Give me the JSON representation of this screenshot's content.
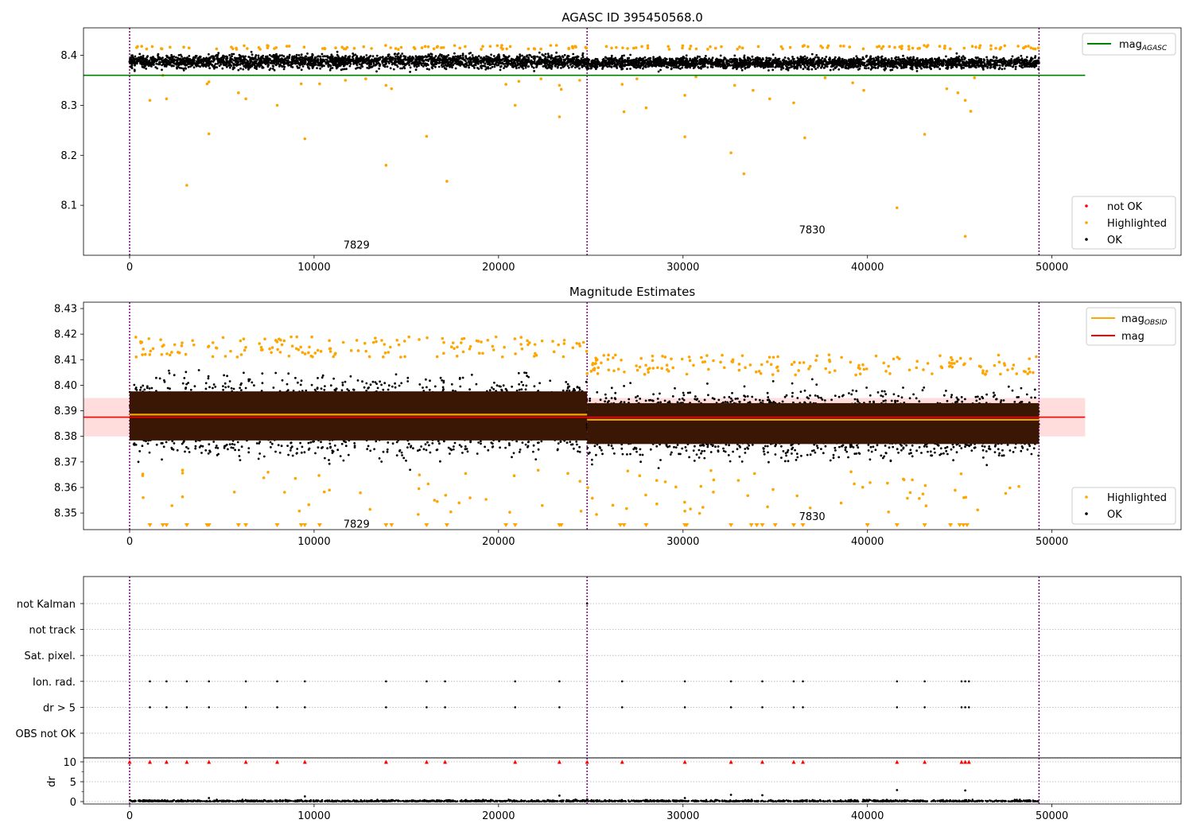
{
  "figure_title": "AGASC ID 395450568.0",
  "chart_data": [
    {
      "type": "scatter",
      "title": "",
      "xlim": [
        -2500,
        57000
      ],
      "ylim": [
        8.0,
        8.455
      ],
      "xticks": [
        0,
        10000,
        20000,
        30000,
        40000,
        50000
      ],
      "xtick_labels": [
        "0",
        "10000",
        "20000",
        "30000",
        "40000",
        "50000"
      ],
      "yticks": [
        8.1,
        8.2,
        8.3,
        8.4
      ],
      "ytick_labels": [
        "8.1",
        "8.2",
        "8.3",
        "8.4"
      ],
      "obs_boundaries": [
        0,
        24800,
        49300
      ],
      "obs_labels": [
        {
          "text": "7829",
          "x": 12300,
          "y": 8.02
        },
        {
          "text": "7830",
          "x": 37000,
          "y": 8.05
        }
      ],
      "mag_agasc": {
        "value": 8.36,
        "x_range": [
          -2500,
          51800
        ]
      },
      "ok_bands": [
        {
          "x": [
            0,
            24800
          ],
          "center": 8.388,
          "halfwidth": 0.012
        },
        {
          "x": [
            24800,
            49300
          ],
          "center": 8.385,
          "halfwidth": 0.01
        }
      ],
      "highlighted_points": [
        [
          1100,
          8.31
        ],
        [
          1800,
          8.36
        ],
        [
          2000,
          8.313
        ],
        [
          3100,
          8.14
        ],
        [
          4200,
          8.343
        ],
        [
          4300,
          8.347
        ],
        [
          4300,
          8.243
        ],
        [
          5900,
          8.325
        ],
        [
          6300,
          8.313
        ],
        [
          8000,
          8.3
        ],
        [
          9300,
          8.343
        ],
        [
          9500,
          8.233
        ],
        [
          10300,
          8.343
        ],
        [
          11700,
          8.35
        ],
        [
          12800,
          8.353
        ],
        [
          13900,
          8.34
        ],
        [
          14200,
          8.333
        ],
        [
          13900,
          8.18
        ],
        [
          16100,
          8.238
        ],
        [
          17200,
          8.148
        ],
        [
          20400,
          8.342
        ],
        [
          21100,
          8.348
        ],
        [
          20900,
          8.3
        ],
        [
          22300,
          8.353
        ],
        [
          23300,
          8.34
        ],
        [
          23300,
          8.277
        ],
        [
          23400,
          8.332
        ],
        [
          24400,
          8.35
        ],
        [
          26700,
          8.342
        ],
        [
          26800,
          8.287
        ],
        [
          27500,
          8.353
        ],
        [
          28000,
          8.295
        ],
        [
          30100,
          8.32
        ],
        [
          30100,
          8.237
        ],
        [
          30700,
          8.357
        ],
        [
          32600,
          8.205
        ],
        [
          32800,
          8.34
        ],
        [
          33300,
          8.163
        ],
        [
          33800,
          8.33
        ],
        [
          34700,
          8.313
        ],
        [
          36000,
          8.305
        ],
        [
          36600,
          8.235
        ],
        [
          37700,
          8.355
        ],
        [
          39200,
          8.345
        ],
        [
          39800,
          8.33
        ],
        [
          41600,
          8.095
        ],
        [
          43100,
          8.242
        ],
        [
          44300,
          8.333
        ],
        [
          44900,
          8.325
        ],
        [
          45300,
          8.31
        ],
        [
          45300,
          8.038
        ],
        [
          45600,
          8.288
        ],
        [
          45800,
          8.355
        ]
      ],
      "legend_lines": [
        {
          "label": "mag",
          "sub": "AGASC",
          "color": "#008000"
        }
      ],
      "legend_points": [
        {
          "label": "not OK",
          "color": "#ff0000"
        },
        {
          "label": "Highlighted",
          "color": "#ffa500"
        },
        {
          "label": "OK",
          "color": "#000000"
        }
      ]
    },
    {
      "type": "scatter",
      "title": "Magnitude Estimates",
      "xlim": [
        -2500,
        57000
      ],
      "ylim": [
        8.3435,
        8.4325
      ],
      "xticks": [
        0,
        10000,
        20000,
        30000,
        40000,
        50000
      ],
      "xtick_labels": [
        "0",
        "10000",
        "20000",
        "30000",
        "40000",
        "50000"
      ],
      "yticks": [
        8.35,
        8.36,
        8.37,
        8.38,
        8.39,
        8.4,
        8.41,
        8.42,
        8.43
      ],
      "ytick_labels": [
        "8.35",
        "8.36",
        "8.37",
        "8.38",
        "8.39",
        "8.40",
        "8.41",
        "8.42",
        "8.43"
      ],
      "obs_boundaries": [
        0,
        24800,
        49300
      ],
      "obs_labels": [
        {
          "text": "7829",
          "x": 12300,
          "y": 8.3455
        },
        {
          "text": "7830",
          "x": 37000,
          "y": 8.3485
        }
      ],
      "mag_mean": 8.3875,
      "mag_band": [
        8.38,
        8.395
      ],
      "mag_obsid": [
        {
          "x": [
            0,
            24800
          ],
          "value": 8.3885
        },
        {
          "x": [
            24800,
            49300
          ],
          "value": 8.3865
        }
      ],
      "ok_bands": [
        {
          "x": [
            0,
            24800
          ],
          "center": 8.388,
          "halfwidth": 0.012
        },
        {
          "x": [
            24800,
            49300
          ],
          "center": 8.385,
          "halfwidth": 0.01
        }
      ],
      "outlier_x": [
        1100,
        1800,
        2000,
        3100,
        4200,
        4300,
        5900,
        6300,
        8000,
        9300,
        9500,
        10300,
        13900,
        14200,
        16100,
        17200,
        20400,
        20900,
        23300,
        23400,
        26600,
        26800,
        28000,
        30100,
        30200,
        32600,
        33700,
        34000,
        34300,
        35000,
        36000,
        36500,
        40000,
        41600,
        43100,
        44500,
        45000,
        45200,
        45400
      ],
      "legend_lines": [
        {
          "label": "mag",
          "sub": "OBSID",
          "color": "#ffa500"
        },
        {
          "label": "mag",
          "sub": "",
          "color": "#ff0000"
        }
      ],
      "legend_points": [
        {
          "label": "Highlighted",
          "color": "#ffa500"
        },
        {
          "label": "OK",
          "color": "#000000"
        }
      ]
    },
    {
      "type": "scatter",
      "title": "",
      "xlim": [
        -2500,
        57000
      ],
      "xticks": [
        0,
        10000,
        20000,
        30000,
        40000,
        50000
      ],
      "xtick_labels": [
        "0",
        "10000",
        "20000",
        "30000",
        "40000",
        "50000"
      ],
      "obs_boundaries": [
        0,
        24800,
        49300
      ],
      "flag_categories": [
        "not Kalman",
        "not track",
        "Sat. pixel.",
        "Ion. rad.",
        "dr > 5",
        "OBS not OK"
      ],
      "flag_points": {
        "not Kalman": [
          24800
        ],
        "not track": [],
        "Sat. pixel.": [],
        "Ion. rad.": [
          1100,
          2000,
          3100,
          4300,
          6300,
          8000,
          9500,
          13900,
          16100,
          17100,
          20900,
          23300,
          26700,
          30100,
          32600,
          34300,
          36000,
          36500,
          41600,
          43100,
          45100,
          45300,
          45500
        ],
        "dr > 5": [
          1100,
          2000,
          3100,
          4300,
          6300,
          8000,
          9500,
          13900,
          16100,
          17100,
          20900,
          23300,
          26700,
          30100,
          32600,
          34300,
          36000,
          36500,
          41600,
          43100,
          45100,
          45300,
          45500
        ],
        "OBS not OK": []
      },
      "dr_ylim": [
        -0.6,
        10.6
      ],
      "dr_yticks": [
        0,
        5,
        10
      ],
      "dr_ytick_labels": [
        "0",
        "5",
        "10"
      ],
      "dr_ylabel": "dr",
      "dr_clipped_x": [
        0,
        1100,
        2000,
        3100,
        4300,
        6300,
        8000,
        9500,
        13900,
        16100,
        17100,
        20900,
        23300,
        24800,
        26700,
        30100,
        32600,
        34300,
        36000,
        36500,
        41600,
        43100,
        45100,
        45300,
        45500
      ],
      "dr_spikes": [
        [
          9500,
          1.3
        ],
        [
          23300,
          1.5
        ],
        [
          32600,
          1.7
        ],
        [
          34300,
          1.6
        ],
        [
          41600,
          2.9
        ],
        [
          45300,
          2.8
        ],
        [
          30100,
          0.9
        ],
        [
          4300,
          0.9
        ]
      ]
    }
  ]
}
